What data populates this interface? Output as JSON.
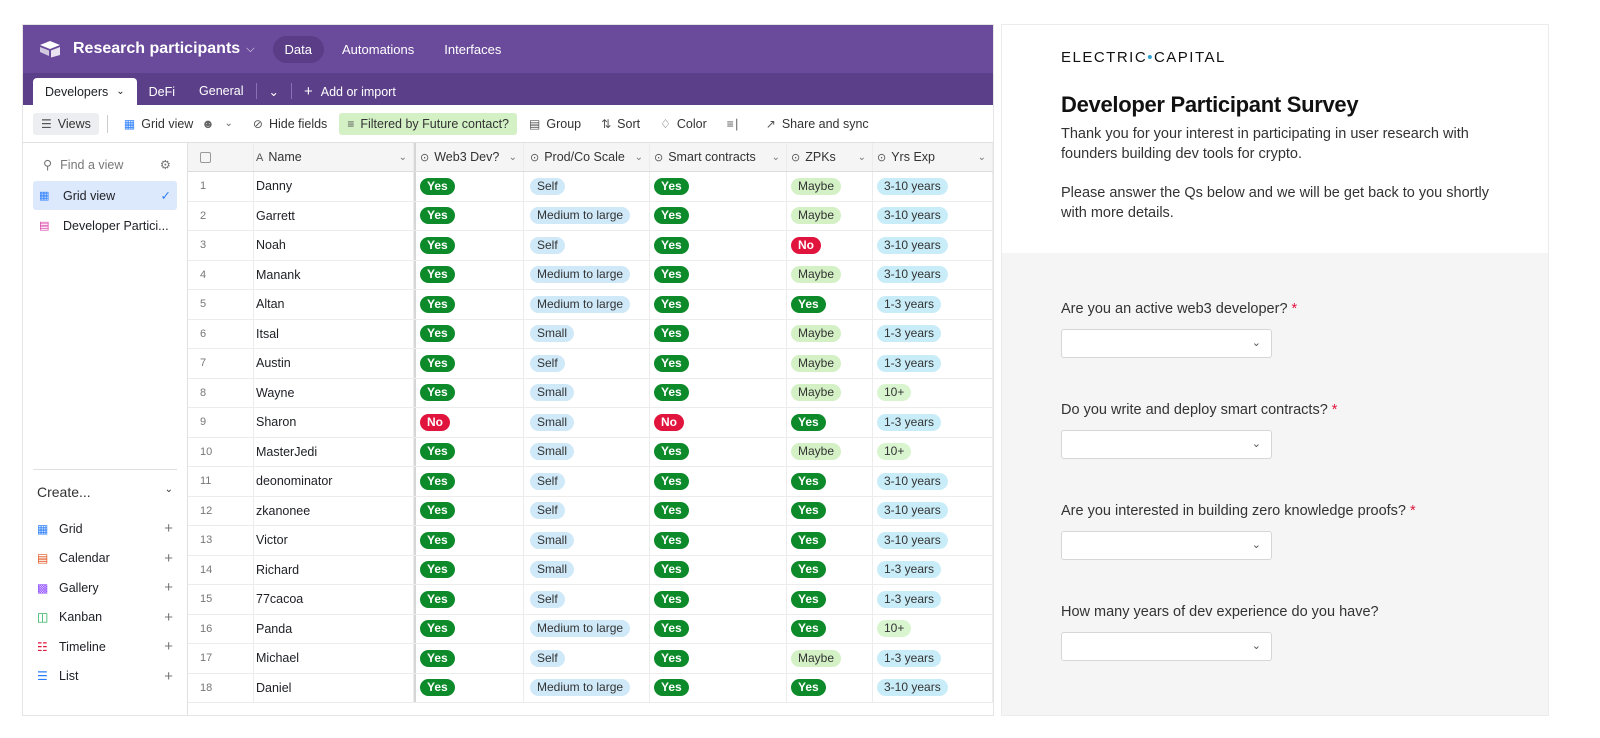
{
  "app": {
    "base_title": "Research participants",
    "top_tabs": [
      "Data",
      "Automations",
      "Interfaces"
    ],
    "active_top_tab": "Data",
    "table_tabs": [
      "Developers",
      "DeFi",
      "General"
    ],
    "add_import": "Add or import"
  },
  "toolbar": {
    "views": "Views",
    "grid_view": "Grid view",
    "hide_fields": "Hide fields",
    "filter": "Filtered by Future contact?",
    "group": "Group",
    "sort": "Sort",
    "color": "Color",
    "share": "Share and sync"
  },
  "sidebar": {
    "find_placeholder": "Find a view",
    "views": [
      {
        "label": "Grid view",
        "active": true
      },
      {
        "label": "Developer Partici...",
        "active": false
      }
    ],
    "create_label": "Create...",
    "create_items": [
      "Grid",
      "Calendar",
      "Gallery",
      "Kanban",
      "Timeline",
      "List"
    ]
  },
  "grid": {
    "columns": [
      "Name",
      "Web3 Dev?",
      "Prod/Co Scale",
      "Smart contracts",
      "ZPKs",
      "Yrs Exp"
    ],
    "rows": [
      {
        "n": "1",
        "name": "Danny",
        "web3": "Yes",
        "scale": "Self",
        "smart": "Yes",
        "zpk": "Maybe",
        "yrs": "3-10 years"
      },
      {
        "n": "2",
        "name": "Garrett",
        "web3": "Yes",
        "scale": "Medium to large",
        "smart": "Yes",
        "zpk": "Maybe",
        "yrs": "3-10 years"
      },
      {
        "n": "3",
        "name": "Noah",
        "web3": "Yes",
        "scale": "Self",
        "smart": "Yes",
        "zpk": "No",
        "yrs": "3-10 years"
      },
      {
        "n": "4",
        "name": "Manank",
        "web3": "Yes",
        "scale": "Medium to large",
        "smart": "Yes",
        "zpk": "Maybe",
        "yrs": "3-10 years"
      },
      {
        "n": "5",
        "name": "Altan",
        "web3": "Yes",
        "scale": "Medium to large",
        "smart": "Yes",
        "zpk": "Yes",
        "yrs": "1-3 years"
      },
      {
        "n": "6",
        "name": "Itsal",
        "web3": "Yes",
        "scale": "Small",
        "smart": "Yes",
        "zpk": "Maybe",
        "yrs": "1-3 years"
      },
      {
        "n": "7",
        "name": "Austin",
        "web3": "Yes",
        "scale": "Self",
        "smart": "Yes",
        "zpk": "Maybe",
        "yrs": "1-3 years"
      },
      {
        "n": "8",
        "name": "Wayne",
        "web3": "Yes",
        "scale": "Small",
        "smart": "Yes",
        "zpk": "Maybe",
        "yrs": "10+"
      },
      {
        "n": "9",
        "name": "Sharon",
        "web3": "No",
        "scale": "Small",
        "smart": "No",
        "zpk": "Yes",
        "yrs": "1-3 years"
      },
      {
        "n": "10",
        "name": "MasterJedi",
        "web3": "Yes",
        "scale": "Small",
        "smart": "Yes",
        "zpk": "Maybe",
        "yrs": "10+"
      },
      {
        "n": "11",
        "name": "deonominator",
        "web3": "Yes",
        "scale": "Self",
        "smart": "Yes",
        "zpk": "Yes",
        "yrs": "3-10 years"
      },
      {
        "n": "12",
        "name": "zkanonee",
        "web3": "Yes",
        "scale": "Self",
        "smart": "Yes",
        "zpk": "Yes",
        "yrs": "3-10 years"
      },
      {
        "n": "13",
        "name": "Victor",
        "web3": "Yes",
        "scale": "Small",
        "smart": "Yes",
        "zpk": "Yes",
        "yrs": "3-10 years"
      },
      {
        "n": "14",
        "name": "Richard",
        "web3": "Yes",
        "scale": "Small",
        "smart": "Yes",
        "zpk": "Yes",
        "yrs": "1-3 years"
      },
      {
        "n": "15",
        "name": "77cacoa",
        "web3": "Yes",
        "scale": "Self",
        "smart": "Yes",
        "zpk": "Yes",
        "yrs": "1-3 years"
      },
      {
        "n": "16",
        "name": "Panda",
        "web3": "Yes",
        "scale": "Medium to large",
        "smart": "Yes",
        "zpk": "Yes",
        "yrs": "10+"
      },
      {
        "n": "17",
        "name": "Michael",
        "web3": "Yes",
        "scale": "Self",
        "smart": "Yes",
        "zpk": "Maybe",
        "yrs": "1-3 years"
      },
      {
        "n": "18",
        "name": "Daniel",
        "web3": "Yes",
        "scale": "Medium to large",
        "smart": "Yes",
        "zpk": "Yes",
        "yrs": "3-10 years"
      }
    ]
  },
  "form": {
    "brand_left": "ELECTRIC",
    "brand_right": "CAPITAL",
    "title": "Developer Participant Survey",
    "desc1": "Thank you for your interest in participating in user research with founders building dev tools for crypto.",
    "desc2": "Please answer the Qs below and we will be get back to you shortly with more details.",
    "questions": [
      {
        "label": "Are you an active web3 developer?",
        "required": "*"
      },
      {
        "label": "Do you write and deploy smart contracts?",
        "required": "*"
      },
      {
        "label": "Are you interested in building zero knowledge proofs?",
        "required": "*"
      },
      {
        "label": "How many years of dev experience do you have?",
        "required": ""
      }
    ]
  },
  "colors": {
    "topbar": "#6a4a9a",
    "yes": "#0d8a2a",
    "no": "#e0143c",
    "filter": "#d4f1c6"
  }
}
